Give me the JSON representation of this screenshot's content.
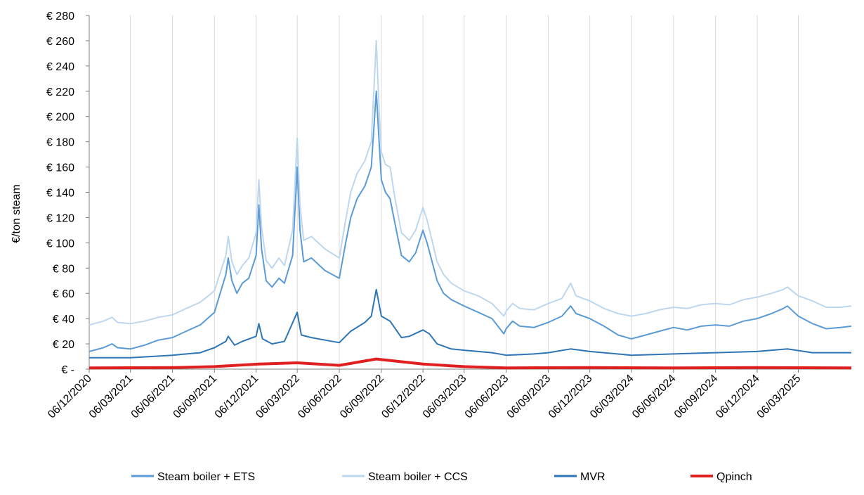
{
  "chart_data": {
    "type": "line",
    "title": "",
    "xlabel": "",
    "ylabel": "€/ton steam",
    "ylim": [
      0,
      280
    ],
    "y_ticks": [
      0,
      20,
      40,
      60,
      80,
      100,
      120,
      140,
      160,
      180,
      200,
      220,
      240,
      260,
      280
    ],
    "y_tick_labels": [
      "€ -",
      "€ 20",
      "€ 40",
      "€ 60",
      "€ 80",
      "€ 100",
      "€ 120",
      "€ 140",
      "€ 160",
      "€ 180",
      "€ 200",
      "€ 220",
      "€ 240",
      "€ 260",
      "€ 280"
    ],
    "x_tick_labels": [
      "06/12/2020",
      "06/03/2021",
      "06/06/2021",
      "06/09/2021",
      "06/12/2021",
      "06/03/2022",
      "06/06/2022",
      "06/09/2022",
      "06/12/2022",
      "06/03/2023",
      "06/06/2023",
      "06/09/2023",
      "06/12/2023",
      "06/03/2024",
      "06/06/2024",
      "06/09/2024",
      "06/12/2024",
      "06/03/2025"
    ],
    "x_range": [
      "06/12/2020",
      "30/06/2025"
    ],
    "grid": "vertical",
    "legend_position": "bottom",
    "series": [
      {
        "name": "Steam boiler + ETS",
        "color": "#5b9bd5",
        "points": [
          [
            "06/12/2020",
            14
          ],
          [
            "06/01/2021",
            17
          ],
          [
            "25/01/2021",
            20
          ],
          [
            "06/02/2021",
            17
          ],
          [
            "06/03/2021",
            16
          ],
          [
            "06/04/2021",
            19
          ],
          [
            "06/05/2021",
            23
          ],
          [
            "06/06/2021",
            25
          ],
          [
            "06/07/2021",
            30
          ],
          [
            "06/08/2021",
            35
          ],
          [
            "06/09/2021",
            45
          ],
          [
            "20/09/2021",
            62
          ],
          [
            "01/10/2021",
            75
          ],
          [
            "06/10/2021",
            88
          ],
          [
            "14/10/2021",
            70
          ],
          [
            "25/10/2021",
            60
          ],
          [
            "06/11/2021",
            68
          ],
          [
            "20/11/2021",
            72
          ],
          [
            "06/12/2021",
            90
          ],
          [
            "12/12/2021",
            130
          ],
          [
            "18/12/2021",
            95
          ],
          [
            "28/12/2021",
            70
          ],
          [
            "10/01/2022",
            65
          ],
          [
            "25/01/2022",
            72
          ],
          [
            "06/02/2022",
            68
          ],
          [
            "24/02/2022",
            90
          ],
          [
            "06/03/2022",
            160
          ],
          [
            "12/03/2022",
            110
          ],
          [
            "20/03/2022",
            85
          ],
          [
            "06/04/2022",
            88
          ],
          [
            "06/05/2022",
            78
          ],
          [
            "06/06/2022",
            72
          ],
          [
            "20/06/2022",
            100
          ],
          [
            "01/07/2022",
            120
          ],
          [
            "15/07/2022",
            135
          ],
          [
            "01/08/2022",
            145
          ],
          [
            "15/08/2022",
            160
          ],
          [
            "26/08/2022",
            220
          ],
          [
            "01/09/2022",
            180
          ],
          [
            "06/09/2022",
            150
          ],
          [
            "15/09/2022",
            140
          ],
          [
            "25/09/2022",
            135
          ],
          [
            "06/10/2022",
            115
          ],
          [
            "20/10/2022",
            90
          ],
          [
            "06/11/2022",
            85
          ],
          [
            "20/11/2022",
            92
          ],
          [
            "06/12/2022",
            110
          ],
          [
            "15/12/2022",
            100
          ],
          [
            "06/01/2023",
            70
          ],
          [
            "20/01/2023",
            60
          ],
          [
            "06/02/2023",
            55
          ],
          [
            "06/03/2023",
            50
          ],
          [
            "06/04/2023",
            45
          ],
          [
            "06/05/2023",
            40
          ],
          [
            "01/06/2023",
            28
          ],
          [
            "06/06/2023",
            32
          ],
          [
            "20/06/2023",
            38
          ],
          [
            "06/07/2023",
            34
          ],
          [
            "06/08/2023",
            33
          ],
          [
            "06/09/2023",
            37
          ],
          [
            "06/10/2023",
            42
          ],
          [
            "25/10/2023",
            50
          ],
          [
            "06/11/2023",
            44
          ],
          [
            "06/12/2023",
            40
          ],
          [
            "06/01/2024",
            34
          ],
          [
            "06/02/2024",
            27
          ],
          [
            "06/03/2024",
            24
          ],
          [
            "06/04/2024",
            27
          ],
          [
            "06/05/2024",
            30
          ],
          [
            "06/06/2024",
            33
          ],
          [
            "06/07/2024",
            31
          ],
          [
            "06/08/2024",
            34
          ],
          [
            "06/09/2024",
            35
          ],
          [
            "06/10/2024",
            34
          ],
          [
            "06/11/2024",
            38
          ],
          [
            "06/12/2024",
            40
          ],
          [
            "06/01/2025",
            44
          ],
          [
            "01/02/2025",
            48
          ],
          [
            "10/02/2025",
            50
          ],
          [
            "06/03/2025",
            42
          ],
          [
            "06/04/2025",
            36
          ],
          [
            "06/05/2025",
            32
          ],
          [
            "06/06/2025",
            33
          ],
          [
            "30/06/2025",
            34
          ]
        ]
      },
      {
        "name": "Steam boiler + CCS",
        "color": "#bdd7ee",
        "points": [
          [
            "06/12/2020",
            35
          ],
          [
            "06/01/2021",
            38
          ],
          [
            "25/01/2021",
            41
          ],
          [
            "06/02/2021",
            37
          ],
          [
            "06/03/2021",
            36
          ],
          [
            "06/04/2021",
            38
          ],
          [
            "06/05/2021",
            41
          ],
          [
            "06/06/2021",
            43
          ],
          [
            "06/07/2021",
            48
          ],
          [
            "06/08/2021",
            53
          ],
          [
            "06/09/2021",
            62
          ],
          [
            "20/09/2021",
            78
          ],
          [
            "01/10/2021",
            90
          ],
          [
            "06/10/2021",
            105
          ],
          [
            "14/10/2021",
            85
          ],
          [
            "25/10/2021",
            75
          ],
          [
            "06/11/2021",
            82
          ],
          [
            "20/11/2021",
            88
          ],
          [
            "06/12/2021",
            108
          ],
          [
            "12/12/2021",
            150
          ],
          [
            "18/12/2021",
            112
          ],
          [
            "28/12/2021",
            86
          ],
          [
            "10/01/2022",
            80
          ],
          [
            "25/01/2022",
            88
          ],
          [
            "06/02/2022",
            82
          ],
          [
            "24/02/2022",
            110
          ],
          [
            "06/03/2022",
            183
          ],
          [
            "12/03/2022",
            130
          ],
          [
            "20/03/2022",
            102
          ],
          [
            "06/04/2022",
            105
          ],
          [
            "06/05/2022",
            95
          ],
          [
            "06/06/2022",
            88
          ],
          [
            "20/06/2022",
            118
          ],
          [
            "01/07/2022",
            140
          ],
          [
            "15/07/2022",
            155
          ],
          [
            "01/08/2022",
            165
          ],
          [
            "15/08/2022",
            180
          ],
          [
            "26/08/2022",
            260
          ],
          [
            "01/09/2022",
            205
          ],
          [
            "06/09/2022",
            172
          ],
          [
            "15/09/2022",
            162
          ],
          [
            "25/09/2022",
            160
          ],
          [
            "06/10/2022",
            135
          ],
          [
            "20/10/2022",
            108
          ],
          [
            "06/11/2022",
            102
          ],
          [
            "20/11/2022",
            110
          ],
          [
            "06/12/2022",
            128
          ],
          [
            "15/12/2022",
            118
          ],
          [
            "06/01/2023",
            85
          ],
          [
            "20/01/2023",
            75
          ],
          [
            "06/02/2023",
            68
          ],
          [
            "06/03/2023",
            62
          ],
          [
            "06/04/2023",
            58
          ],
          [
            "06/05/2023",
            52
          ],
          [
            "01/06/2023",
            42
          ],
          [
            "06/06/2023",
            46
          ],
          [
            "20/06/2023",
            52
          ],
          [
            "06/07/2023",
            48
          ],
          [
            "06/08/2023",
            47
          ],
          [
            "06/09/2023",
            52
          ],
          [
            "06/10/2023",
            56
          ],
          [
            "25/10/2023",
            68
          ],
          [
            "06/11/2023",
            58
          ],
          [
            "06/12/2023",
            54
          ],
          [
            "06/01/2024",
            48
          ],
          [
            "06/02/2024",
            44
          ],
          [
            "06/03/2024",
            42
          ],
          [
            "06/04/2024",
            44
          ],
          [
            "06/05/2024",
            47
          ],
          [
            "06/06/2024",
            49
          ],
          [
            "06/07/2024",
            48
          ],
          [
            "06/08/2024",
            51
          ],
          [
            "06/09/2024",
            52
          ],
          [
            "06/10/2024",
            51
          ],
          [
            "06/11/2024",
            55
          ],
          [
            "06/12/2024",
            57
          ],
          [
            "06/01/2025",
            60
          ],
          [
            "01/02/2025",
            63
          ],
          [
            "10/02/2025",
            65
          ],
          [
            "06/03/2025",
            58
          ],
          [
            "06/04/2025",
            54
          ],
          [
            "06/05/2025",
            49
          ],
          [
            "06/06/2025",
            49
          ],
          [
            "30/06/2025",
            50
          ]
        ]
      },
      {
        "name": "MVR",
        "color": "#2e75b6",
        "points": [
          [
            "06/12/2020",
            9
          ],
          [
            "06/03/2021",
            9
          ],
          [
            "06/06/2021",
            11
          ],
          [
            "06/08/2021",
            13
          ],
          [
            "06/09/2021",
            17
          ],
          [
            "01/10/2021",
            22
          ],
          [
            "06/10/2021",
            26
          ],
          [
            "20/10/2021",
            19
          ],
          [
            "06/11/2021",
            22
          ],
          [
            "06/12/2021",
            26
          ],
          [
            "12/12/2021",
            36
          ],
          [
            "20/12/2021",
            24
          ],
          [
            "10/01/2022",
            20
          ],
          [
            "06/02/2022",
            22
          ],
          [
            "06/03/2022",
            45
          ],
          [
            "15/03/2022",
            27
          ],
          [
            "06/04/2022",
            25
          ],
          [
            "06/05/2022",
            23
          ],
          [
            "06/06/2022",
            21
          ],
          [
            "01/07/2022",
            30
          ],
          [
            "01/08/2022",
            37
          ],
          [
            "15/08/2022",
            42
          ],
          [
            "26/08/2022",
            63
          ],
          [
            "06/09/2022",
            42
          ],
          [
            "25/09/2022",
            38
          ],
          [
            "20/10/2022",
            25
          ],
          [
            "06/11/2022",
            26
          ],
          [
            "06/12/2022",
            31
          ],
          [
            "20/12/2022",
            28
          ],
          [
            "06/01/2023",
            20
          ],
          [
            "06/02/2023",
            16
          ],
          [
            "06/03/2023",
            15
          ],
          [
            "06/05/2023",
            13
          ],
          [
            "06/06/2023",
            11
          ],
          [
            "06/08/2023",
            12
          ],
          [
            "06/09/2023",
            13
          ],
          [
            "25/10/2023",
            16
          ],
          [
            "06/12/2023",
            14
          ],
          [
            "06/03/2024",
            11
          ],
          [
            "06/06/2024",
            12
          ],
          [
            "06/09/2024",
            13
          ],
          [
            "06/12/2024",
            14
          ],
          [
            "10/02/2025",
            16
          ],
          [
            "06/04/2025",
            13
          ],
          [
            "30/06/2025",
            13
          ]
        ]
      },
      {
        "name": "Qpinch",
        "color": "#e02020",
        "points": [
          [
            "06/12/2020",
            1
          ],
          [
            "06/06/2021",
            1.2
          ],
          [
            "06/09/2021",
            2
          ],
          [
            "12/12/2021",
            4
          ],
          [
            "06/03/2022",
            5
          ],
          [
            "06/06/2022",
            3
          ],
          [
            "26/08/2022",
            8
          ],
          [
            "06/12/2022",
            4
          ],
          [
            "06/03/2023",
            2
          ],
          [
            "06/06/2023",
            1
          ],
          [
            "06/12/2023",
            1.2
          ],
          [
            "06/06/2024",
            1
          ],
          [
            "06/12/2024",
            1.2
          ],
          [
            "30/06/2025",
            1
          ]
        ]
      }
    ]
  }
}
